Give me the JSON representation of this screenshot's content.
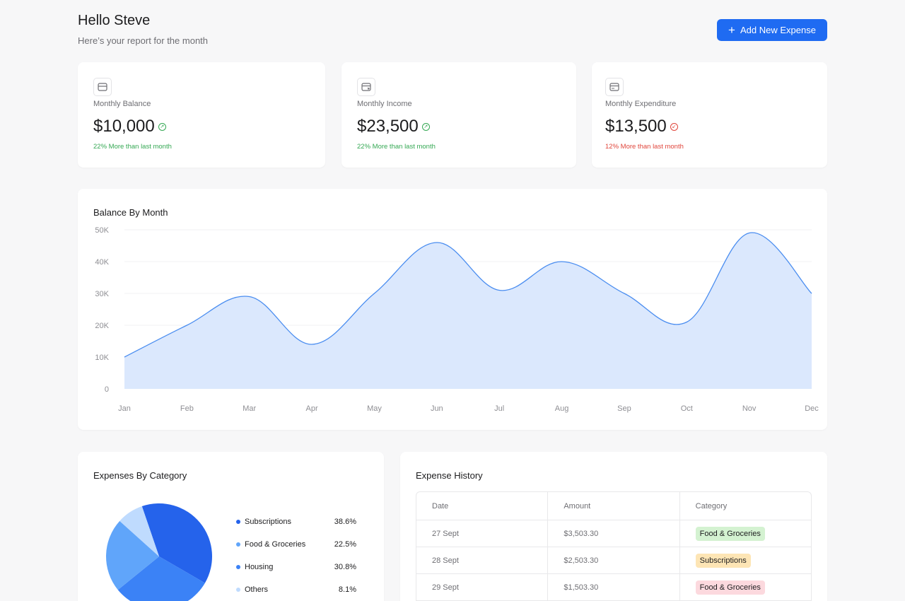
{
  "header": {
    "greeting": "Hello Steve",
    "subtitle": "Here’s your report for the month",
    "add_button": "Add New Expense"
  },
  "stats": [
    {
      "label": "Monthly Balance",
      "value": "$10,000",
      "change": "22% More than last month",
      "trend": "up",
      "icon": "wallet-icon"
    },
    {
      "label": "Monthly Income",
      "value": "$23,500",
      "change": "22% More than last month",
      "trend": "up",
      "icon": "card-in-icon"
    },
    {
      "label": "Monthly Expenditure",
      "value": "$13,500",
      "change": "12% More than last month",
      "trend": "down",
      "icon": "card-out-icon"
    }
  ],
  "colors": {
    "accent": "#1f6bf2",
    "up": "#34a853",
    "down": "#e0453b",
    "area_fill": "#dbe8fd",
    "area_line": "#4a8df0"
  },
  "balance_chart": {
    "title": "Balance By Month"
  },
  "pie_section": {
    "title": "Expenses By Category"
  },
  "history": {
    "title": "Expense History",
    "columns": [
      "Date",
      "Amount",
      "Category"
    ],
    "rows": [
      {
        "date": "27 Sept",
        "amount": "$3,503.30",
        "category": "Food & Groceries",
        "color": "#d4f2d1"
      },
      {
        "date": "28 Sept",
        "amount": "$2,503.30",
        "category": "Subscriptions",
        "color": "#fde5b5"
      },
      {
        "date": "29 Sept",
        "amount": "$1,503.30",
        "category": "Food & Groceries",
        "color": "#fcd9de"
      }
    ]
  },
  "chart_data": [
    {
      "type": "area",
      "title": "Balance By Month",
      "xlabel": "",
      "ylabel": "",
      "categories": [
        "Jan",
        "Feb",
        "Mar",
        "Apr",
        "May",
        "Jun",
        "Jul",
        "Aug",
        "Sep",
        "Oct",
        "Nov",
        "Dec"
      ],
      "values": [
        10000,
        20000,
        29000,
        14000,
        30000,
        46000,
        31000,
        40000,
        30000,
        21000,
        49000,
        30000
      ],
      "yticks": [
        "0",
        "10K",
        "20K",
        "30K",
        "40K",
        "50K"
      ],
      "ylim": [
        0,
        50000
      ],
      "grid": true
    },
    {
      "type": "pie",
      "title": "Expenses By Category",
      "categories": [
        "Subscriptions",
        "Food & Groceries",
        "Housing",
        "Others"
      ],
      "values": [
        38.6,
        22.5,
        30.8,
        8.1
      ],
      "labels": [
        "38.6%",
        "22.5%",
        "30.8%",
        "8.1%"
      ],
      "colors": [
        "#2563eb",
        "#60a5fa",
        "#3b82f6",
        "#bfdbfe"
      ]
    }
  ]
}
